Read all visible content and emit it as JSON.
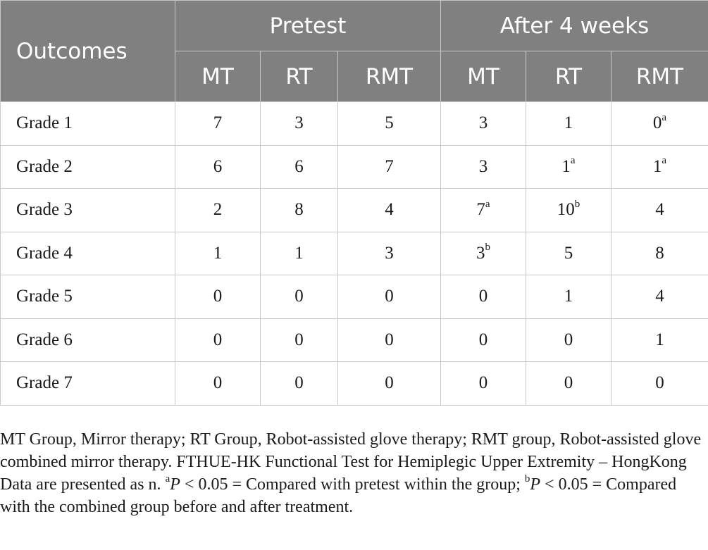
{
  "table": {
    "header": {
      "outcomes": "Outcomes",
      "pretest": "Pretest",
      "after": "After 4 weeks",
      "groups": [
        "MT",
        "RT",
        "RMT",
        "MT",
        "RT",
        "RMT"
      ]
    },
    "rows": [
      {
        "label": "Grade 1",
        "cells": [
          {
            "v": "7",
            "s": ""
          },
          {
            "v": "3",
            "s": ""
          },
          {
            "v": "5",
            "s": ""
          },
          {
            "v": "3",
            "s": ""
          },
          {
            "v": "1",
            "s": ""
          },
          {
            "v": "0",
            "s": "a"
          }
        ]
      },
      {
        "label": "Grade 2",
        "cells": [
          {
            "v": "6",
            "s": ""
          },
          {
            "v": "6",
            "s": ""
          },
          {
            "v": "7",
            "s": ""
          },
          {
            "v": "3",
            "s": ""
          },
          {
            "v": "1",
            "s": "a"
          },
          {
            "v": "1",
            "s": "a"
          }
        ]
      },
      {
        "label": "Grade 3",
        "cells": [
          {
            "v": "2",
            "s": ""
          },
          {
            "v": "8",
            "s": ""
          },
          {
            "v": "4",
            "s": ""
          },
          {
            "v": "7",
            "s": "a"
          },
          {
            "v": "10",
            "s": "b"
          },
          {
            "v": "4",
            "s": ""
          }
        ]
      },
      {
        "label": "Grade 4",
        "cells": [
          {
            "v": "1",
            "s": ""
          },
          {
            "v": "1",
            "s": ""
          },
          {
            "v": "3",
            "s": ""
          },
          {
            "v": "3",
            "s": "b"
          },
          {
            "v": "5",
            "s": ""
          },
          {
            "v": "8",
            "s": ""
          }
        ]
      },
      {
        "label": "Grade 5",
        "cells": [
          {
            "v": "0",
            "s": ""
          },
          {
            "v": "0",
            "s": ""
          },
          {
            "v": "0",
            "s": ""
          },
          {
            "v": "0",
            "s": ""
          },
          {
            "v": "1",
            "s": ""
          },
          {
            "v": "4",
            "s": ""
          }
        ]
      },
      {
        "label": "Grade 6",
        "cells": [
          {
            "v": "0",
            "s": ""
          },
          {
            "v": "0",
            "s": ""
          },
          {
            "v": "0",
            "s": ""
          },
          {
            "v": "0",
            "s": ""
          },
          {
            "v": "0",
            "s": ""
          },
          {
            "v": "1",
            "s": ""
          }
        ]
      },
      {
        "label": "Grade 7",
        "cells": [
          {
            "v": "0",
            "s": ""
          },
          {
            "v": "0",
            "s": ""
          },
          {
            "v": "0",
            "s": ""
          },
          {
            "v": "0",
            "s": ""
          },
          {
            "v": "0",
            "s": ""
          },
          {
            "v": "0",
            "s": ""
          }
        ]
      }
    ]
  },
  "footnote": {
    "text1": "MT Group, Mirror therapy; RT Group, Robot-assisted glove therapy; RMT group, Robot-assisted glove combined mirror therapy. FTHUE-HK Functional Test for Hemiplegic Upper Extremity – HongKong Data are presented as n. ",
    "sup_a": "a",
    "p_a": "P",
    "text2": " < 0.05 = Compared with pretest within the group; ",
    "sup_b": "b",
    "p_b": "P",
    "text3": " < 0.05 = Compared with the combined group before and after treatment."
  }
}
